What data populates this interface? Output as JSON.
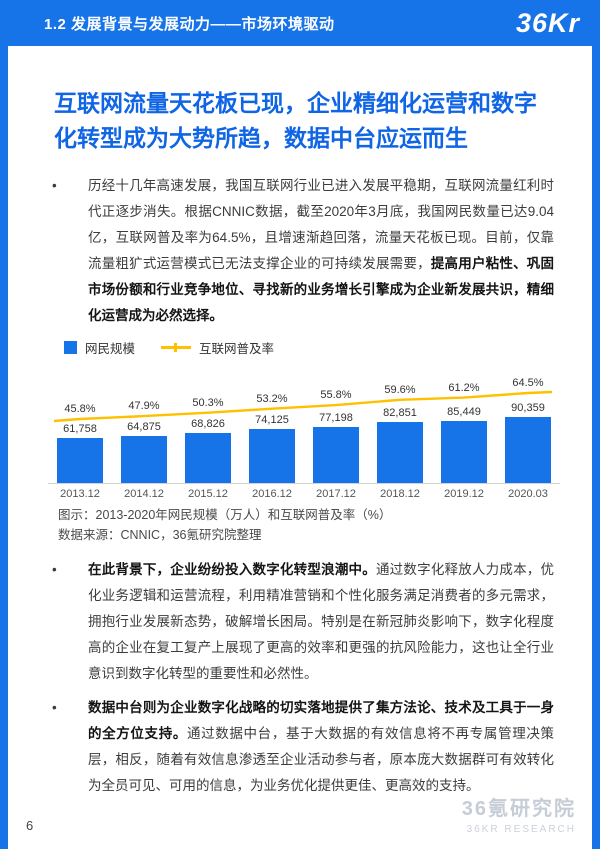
{
  "header": {
    "title": "1.2 发展背景与发展动力——市场环境驱动",
    "logo": "36Kr"
  },
  "main": {
    "headline": "互联网流量天花板已现，企业精细化运营和数字化转型成为大势所趋，数据中台应运而生",
    "bullets": [
      {
        "marker": "•",
        "normal_start": "历经十几年高速发展，我国互联网行业已进入发展平稳期，互联网流量红利时代正逐步消失。根据CNNIC数据，截至2020年3月底，我国网民数量已达9.04亿，互联网普及率为64.5%，且增速渐趋回落，流量天花板已现。目前，仅靠流量粗犷式运营模式已无法支撑企业的可持续发展需要，",
        "bold_end": "提高用户粘性、巩固市场份额和行业竞争地位、寻找新的业务增长引擎成为企业新发展共识，精细化运营成为必然选择。"
      },
      {
        "marker": "•",
        "bold_start": "在此背景下，企业纷纷投入数字化转型浪潮中。",
        "normal_end": "通过数字化释放人力成本，优化业务逻辑和运营流程，利用精准营销和个性化服务满足消费者的多元需求，拥抱行业发展新态势，破解增长困局。特别是在新冠肺炎影响下，数字化程度高的企业在复工复产上展现了更高的效率和更强的抗风险能力，这也让全行业意识到数字化转型的重要性和必然性。"
      },
      {
        "marker": "•",
        "bold_start": "数据中台则为企业数字化战略的切实落地提供了集方法论、技术及工具于一身的全方位支持。",
        "normal_end": "通过数据中台，基于大数据的有效信息将不再专属管理决策层，相反，随着有效信息渗透至企业活动参与者，原本庞大数据群可有效转化为全员可见、可用的信息，为业务优化提供更佳、更高效的支持。"
      }
    ]
  },
  "chart_data": {
    "type": "bar",
    "categories": [
      "2013.12",
      "2014.12",
      "2015.12",
      "2016.12",
      "2017.12",
      "2018.12",
      "2019.12",
      "2020.03"
    ],
    "series": [
      {
        "name": "网民规模",
        "kind": "bar",
        "values": [
          61758,
          64875,
          68826,
          74125,
          77198,
          82851,
          85449,
          90359
        ],
        "labels": [
          "61,758",
          "64,875",
          "68,826",
          "74,125",
          "77,198",
          "82,851",
          "85,449",
          "90,359"
        ],
        "color": "#1673E8"
      },
      {
        "name": "互联网普及率",
        "kind": "line",
        "values": [
          45.8,
          47.9,
          50.3,
          53.2,
          55.8,
          59.6,
          61.2,
          64.5
        ],
        "labels": [
          "45.8%",
          "47.9%",
          "50.3%",
          "53.2%",
          "55.8%",
          "59.6%",
          "61.2%",
          "64.5%"
        ],
        "color": "#FFC000"
      }
    ],
    "caption": "图示：2013-2020年网民规模（万人）和互联网普及率（%）",
    "source": "数据来源：CNNIC，36氪研究院整理",
    "ylim": [
      0,
      100000
    ],
    "legend_position": "top-left",
    "grid": false
  },
  "footer": {
    "page_number": "6",
    "watermark_cn": "36氪研究院",
    "watermark_en": "36KR RESEARCH"
  },
  "colors": {
    "brand_blue": "#1673E8",
    "headline_blue": "#1065E5",
    "accent_yellow": "#FFC000",
    "watermark_gray": "#c7cdd6"
  }
}
